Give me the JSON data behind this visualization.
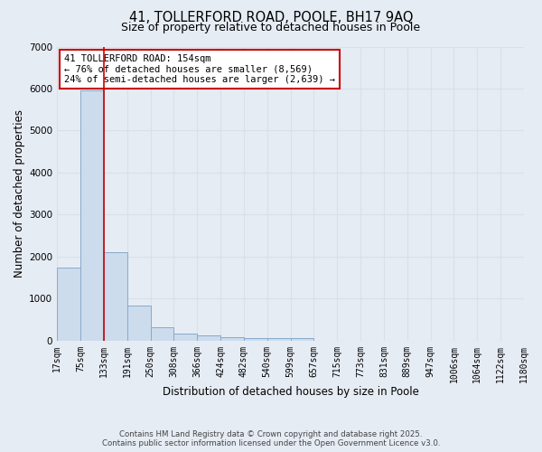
{
  "title_line1": "41, TOLLERFORD ROAD, POOLE, BH17 9AQ",
  "title_line2": "Size of property relative to detached houses in Poole",
  "xlabel": "Distribution of detached houses by size in Poole",
  "ylabel": "Number of detached properties",
  "counts": [
    1750,
    5950,
    2100,
    830,
    310,
    175,
    120,
    80,
    60,
    55,
    55,
    0,
    0,
    0,
    0,
    0,
    0,
    0,
    0,
    0
  ],
  "bar_color": "#ccdcec",
  "bar_edge_color": "#88aacc",
  "bg_color": "#e6ecf4",
  "red_line_bin": 2,
  "annotation_title": "41 TOLLERFORD ROAD: 154sqm",
  "annotation_line1": "← 76% of detached houses are smaller (8,569)",
  "annotation_line2": "24% of semi-detached houses are larger (2,639) →",
  "annotation_box_color": "#ffffff",
  "annotation_border_color": "#cc0000",
  "footer_line1": "Contains HM Land Registry data © Crown copyright and database right 2025.",
  "footer_line2": "Contains public sector information licensed under the Open Government Licence v3.0.",
  "ylim": [
    0,
    7000
  ],
  "yticks": [
    0,
    1000,
    2000,
    3000,
    4000,
    5000,
    6000,
    7000
  ],
  "tick_labels": [
    "17sqm",
    "75sqm",
    "133sqm",
    "191sqm",
    "250sqm",
    "308sqm",
    "366sqm",
    "424sqm",
    "482sqm",
    "540sqm",
    "599sqm",
    "657sqm",
    "715sqm",
    "773sqm",
    "831sqm",
    "889sqm",
    "947sqm",
    "1006sqm",
    "1064sqm",
    "1122sqm",
    "1180sqm"
  ],
  "grid_color": "#d8e0ea",
  "title_fontsize": 10.5,
  "subtitle_fontsize": 9,
  "axis_label_fontsize": 8.5,
  "tick_fontsize": 7
}
